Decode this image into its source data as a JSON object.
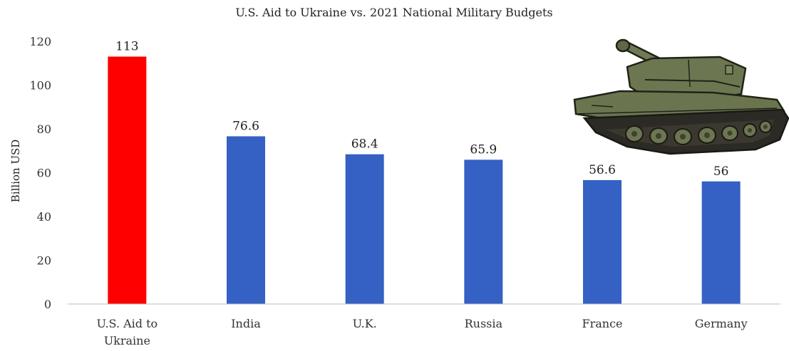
{
  "chart_data": {
    "type": "bar",
    "title": "U.S. Aid to Ukraine vs. 2021 National Military Budgets",
    "xlabel": "",
    "ylabel": "Billion USD",
    "ylim": [
      0,
      120
    ],
    "yticks": [
      0,
      20,
      40,
      60,
      80,
      100,
      120
    ],
    "categories": [
      "U.S. Aid to Ukraine",
      "India",
      "U.K.",
      "Russia",
      "France",
      "Germany"
    ],
    "category_lines": [
      [
        "U.S. Aid to",
        "Ukraine"
      ],
      [
        "India"
      ],
      [
        "U.K."
      ],
      [
        "Russia"
      ],
      [
        "France"
      ],
      [
        "Germany"
      ]
    ],
    "values": [
      113,
      76.6,
      68.4,
      65.9,
      56.6,
      56
    ],
    "data_labels": [
      "113",
      "76.6",
      "68.4",
      "65.9",
      "56.6",
      "56"
    ],
    "bar_colors": [
      "#ff0000",
      "#3560c4",
      "#3560c4",
      "#3560c4",
      "#3560c4",
      "#3560c4"
    ],
    "grid": false,
    "legend": "none"
  },
  "illustration": {
    "icon": "tank-icon"
  }
}
